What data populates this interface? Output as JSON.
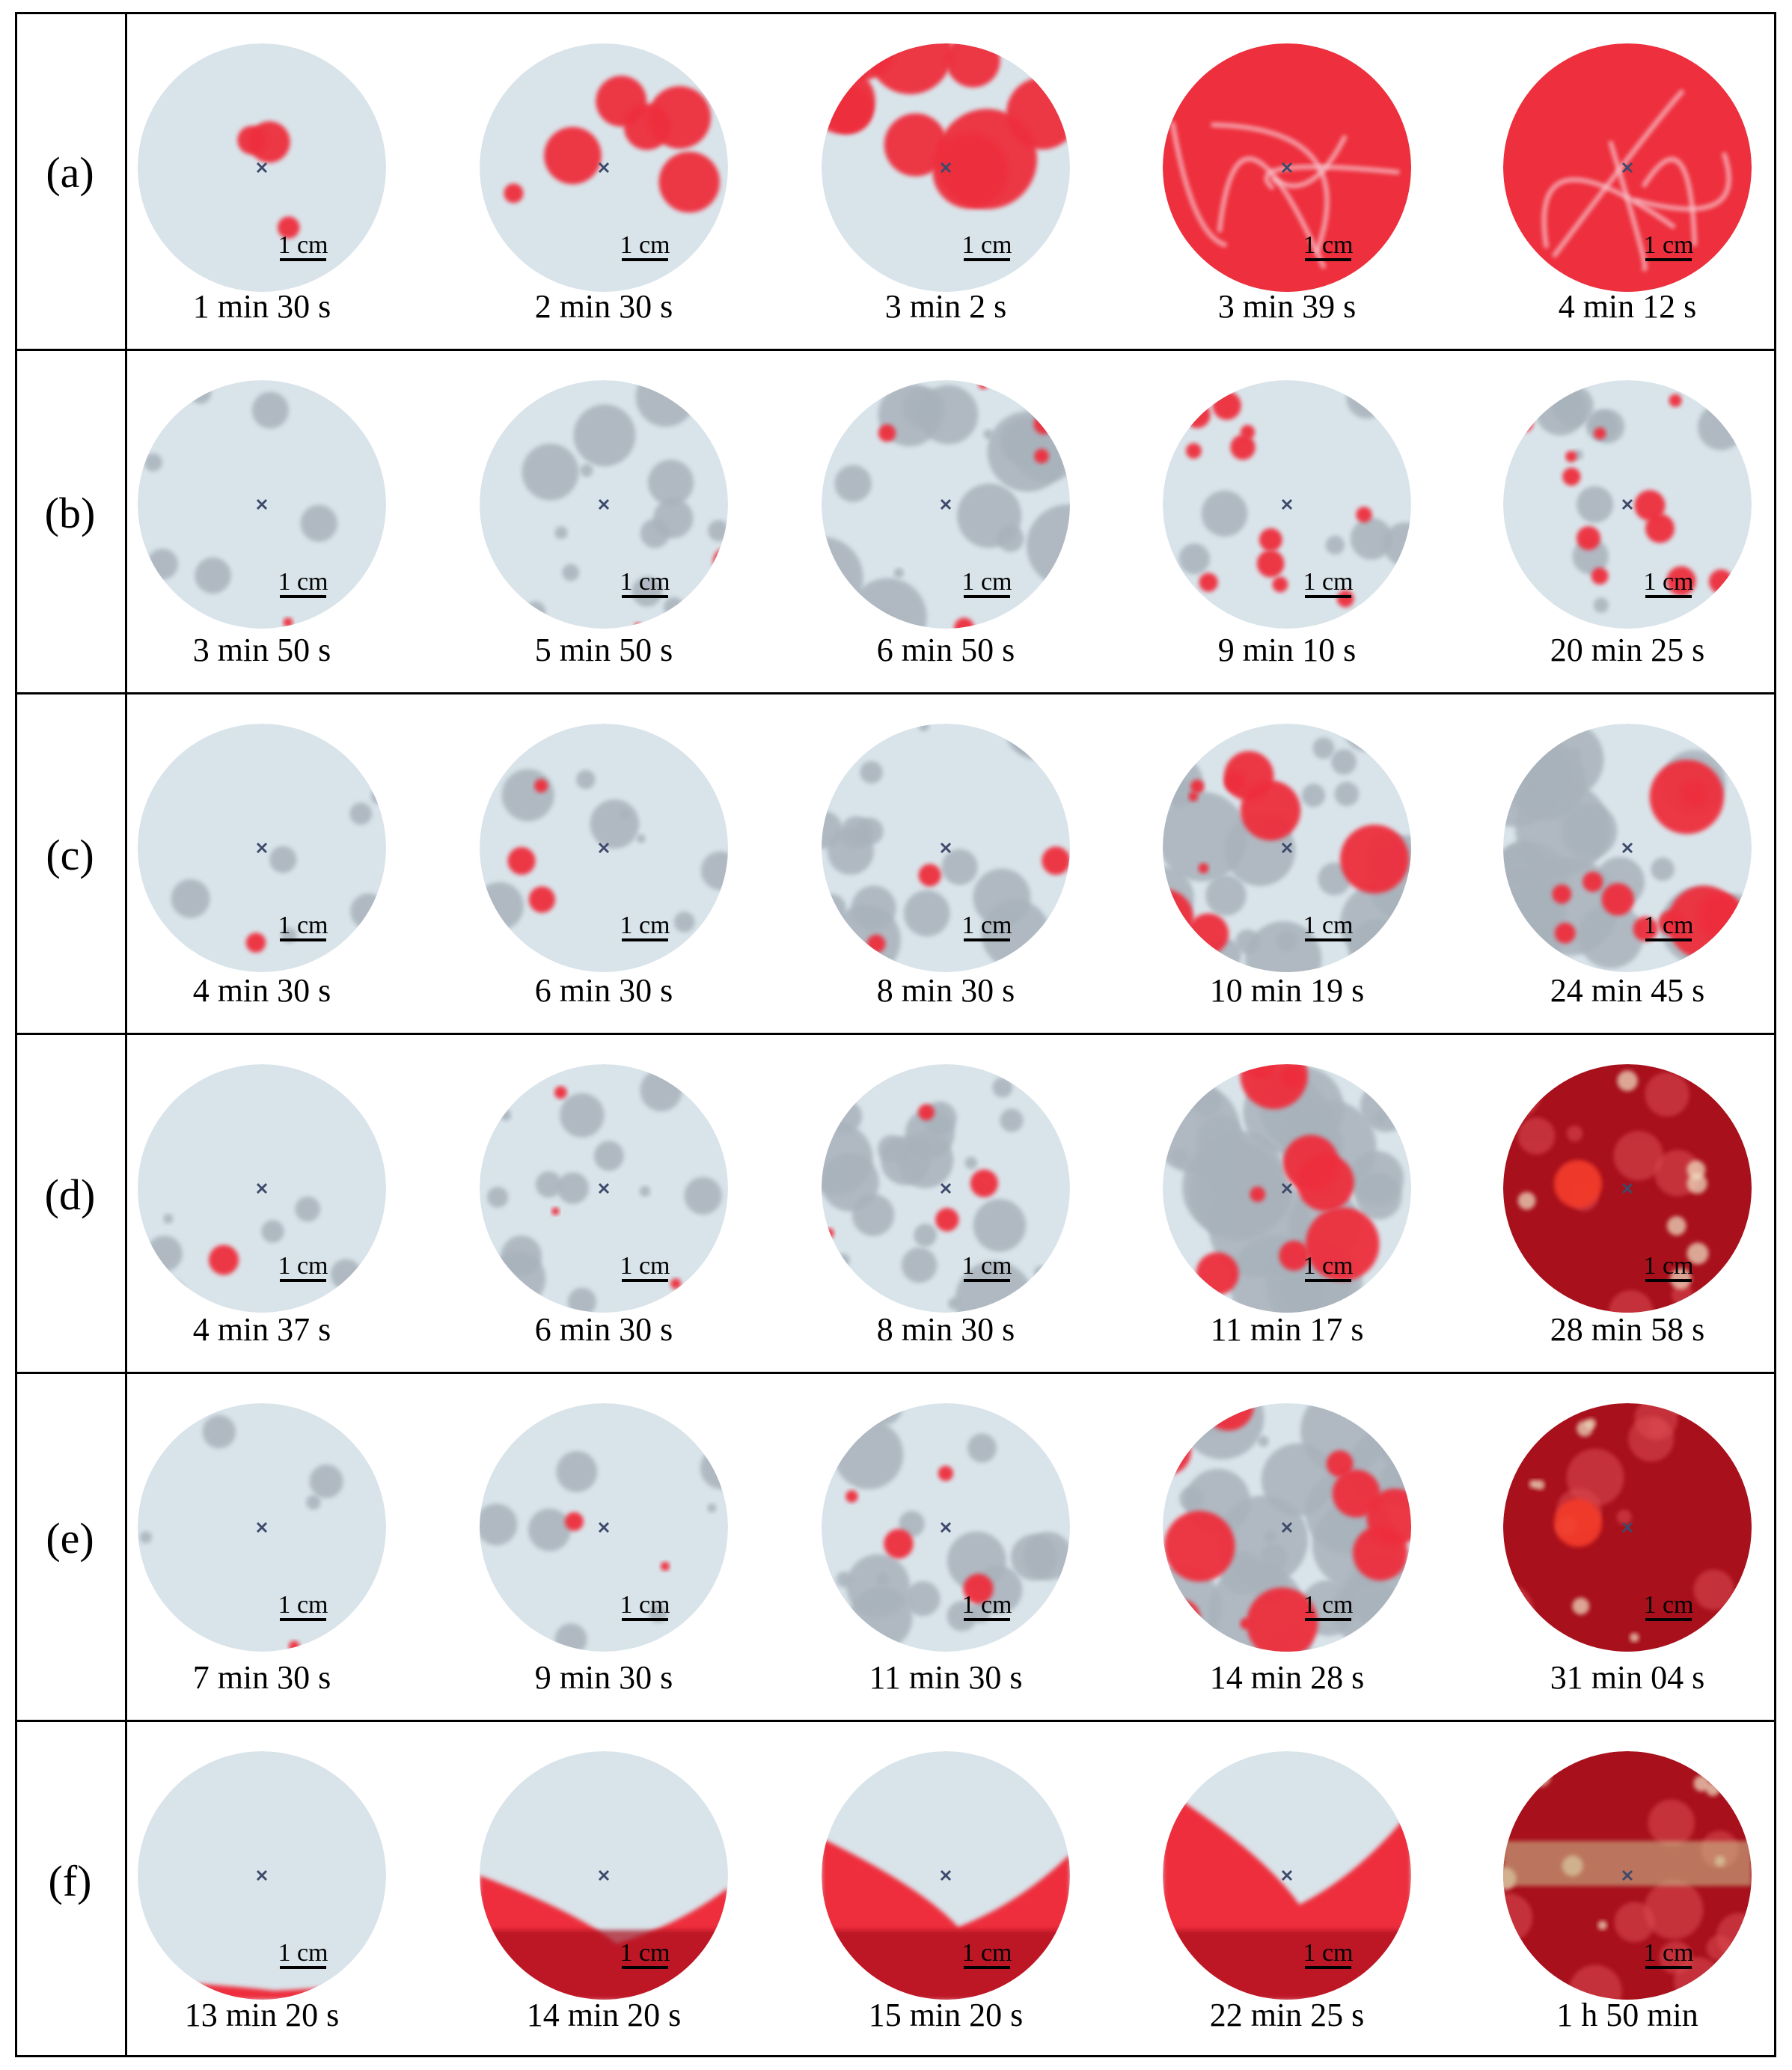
{
  "rows": [
    {
      "label": "(a)",
      "panels": [
        {
          "time": "1 min 30 s",
          "scale": "1 cm",
          "coverage": 0.08,
          "style": "red"
        },
        {
          "time": "2 min 30 s",
          "scale": "1 cm",
          "coverage": 0.35,
          "style": "red"
        },
        {
          "time": "3 min 2 s",
          "scale": "1 cm",
          "coverage": 0.7,
          "style": "red"
        },
        {
          "time": "3 min 39 s",
          "scale": "1 cm",
          "coverage": 1.0,
          "style": "red-full"
        },
        {
          "time": "4 min 12 s",
          "scale": "1 cm",
          "coverage": 1.0,
          "style": "red-full"
        }
      ]
    },
    {
      "label": "(b)",
      "panels": [
        {
          "time": "3 min 50 s",
          "scale": "1 cm",
          "coverage": 0.05,
          "style": "grey"
        },
        {
          "time": "5 min 50 s",
          "scale": "1 cm",
          "coverage": 0.3,
          "style": "grey"
        },
        {
          "time": "6 min 50 s",
          "scale": "1 cm",
          "coverage": 0.55,
          "style": "grey"
        },
        {
          "time": "9 min 10 s",
          "scale": "1 cm",
          "coverage": 0.15,
          "style": "grey-red"
        },
        {
          "time": "20 min 25 s",
          "scale": "1 cm",
          "coverage": 0.2,
          "style": "grey-red"
        }
      ]
    },
    {
      "label": "(c)",
      "panels": [
        {
          "time": "4 min 30 s",
          "scale": "1 cm",
          "coverage": 0.05,
          "style": "grey"
        },
        {
          "time": "6 min 30 s",
          "scale": "1 cm",
          "coverage": 0.2,
          "style": "grey"
        },
        {
          "time": "8 min 30 s",
          "scale": "1 cm",
          "coverage": 0.4,
          "style": "grey"
        },
        {
          "time": "10 min 19 s",
          "scale": "1 cm",
          "coverage": 0.6,
          "style": "mixed"
        },
        {
          "time": "24 min 45 s",
          "scale": "1 cm",
          "coverage": 0.7,
          "style": "mixed"
        }
      ]
    },
    {
      "label": "(d)",
      "panels": [
        {
          "time": "4 min 37 s",
          "scale": "1 cm",
          "coverage": 0.05,
          "style": "grey"
        },
        {
          "time": "6 min 30 s",
          "scale": "1 cm",
          "coverage": 0.25,
          "style": "grey"
        },
        {
          "time": "8 min 30 s",
          "scale": "1 cm",
          "coverage": 0.55,
          "style": "grey"
        },
        {
          "time": "11 min 17 s",
          "scale": "1 cm",
          "coverage": 0.75,
          "style": "mixed"
        },
        {
          "time": "28 min 58 s",
          "scale": "1 cm",
          "coverage": 1.0,
          "style": "dark-red"
        }
      ]
    },
    {
      "label": "(e)",
      "panels": [
        {
          "time": "7 min 30 s",
          "scale": "1 cm",
          "coverage": 0.03,
          "style": "grey"
        },
        {
          "time": "9 min 30 s",
          "scale": "1 cm",
          "coverage": 0.12,
          "style": "grey"
        },
        {
          "time": "11 min 30 s",
          "scale": "1 cm",
          "coverage": 0.4,
          "style": "grey"
        },
        {
          "time": "14 min 28 s",
          "scale": "1 cm",
          "coverage": 0.7,
          "style": "mixed"
        },
        {
          "time": "31 min 04 s",
          "scale": "1 cm",
          "coverage": 1.0,
          "style": "dark-red"
        }
      ]
    },
    {
      "label": "(f)",
      "panels": [
        {
          "time": "13 min 20 s",
          "scale": "1 cm",
          "coverage": 0.08,
          "style": "front"
        },
        {
          "time": "14 min 20 s",
          "scale": "1 cm",
          "coverage": 0.5,
          "style": "front"
        },
        {
          "time": "15 min 20 s",
          "scale": "1 cm",
          "coverage": 0.65,
          "style": "front"
        },
        {
          "time": "22 min 25 s",
          "scale": "1 cm",
          "coverage": 0.85,
          "style": "front"
        },
        {
          "time": "1 h 50 min",
          "scale": "1 cm",
          "coverage": 1.0,
          "style": "dark-red-band"
        }
      ]
    }
  ],
  "colors": {
    "substrate": "#d9e4ea",
    "grey_zone": "#a9b2bb",
    "red": "#ee2f3d",
    "dark_red": "#a8101c",
    "mark": "#3d4a6b"
  }
}
